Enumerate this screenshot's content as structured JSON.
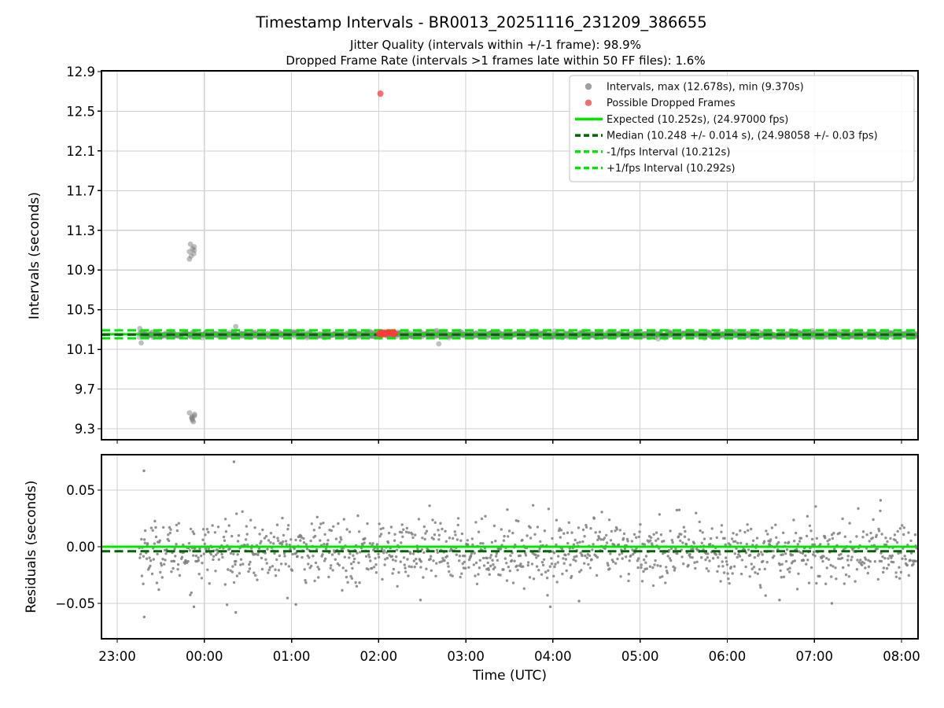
{
  "title": "Timestamp Intervals - BR0013_20251116_231209_386655",
  "subtitle_jitter": "Jitter Quality (intervals within +/-1 frame): 98.9%",
  "subtitle_dropped": "Dropped Frame Rate (intervals >1 frames late within 50 FF files): 1.6%",
  "colors": {
    "scatter_gray": "#808080",
    "residual_gray": "#7f7f7f",
    "dropped_red": "#ff3b3b",
    "bright_green": "#00e500",
    "dark_green": "#006400",
    "grid": "#d0d0d0",
    "spine": "#000000",
    "legend_border": "#cccccc"
  },
  "chart_data": [
    {
      "type": "scatter",
      "panel": "intervals",
      "ylabel": "Intervals (seconds)",
      "ytick_labels": [
        "12.9",
        "12.5",
        "12.1",
        "11.7",
        "11.3",
        "10.9",
        "10.5",
        "10.1",
        "9.7",
        "9.3"
      ],
      "ytick_values": [
        12.9,
        12.5,
        12.1,
        11.7,
        11.3,
        10.9,
        10.5,
        10.1,
        9.7,
        9.3
      ],
      "ylim": [
        9.19,
        12.93
      ],
      "xlim_hours": [
        -0.18,
        9.19
      ],
      "grid": true,
      "legend_position": "upper right",
      "legend": [
        {
          "label": "Intervals, max (12.678s), min (9.370s)",
          "marker": "dot",
          "color": "#a0a0a0"
        },
        {
          "label": "Possible Dropped Frames",
          "marker": "dot",
          "color": "#f26d6d"
        },
        {
          "label": "Expected (10.252s), (24.97000 fps)",
          "marker": "line-solid",
          "color": "#00e500"
        },
        {
          "label": "Median (10.248 +/- 0.014 s), (24.98058 +/- 0.03 fps)",
          "marker": "line-dashed",
          "color": "#006400"
        },
        {
          "label": "-1/fps Interval (10.212s)",
          "marker": "line-dashed",
          "color": "#00e500"
        },
        {
          "label": "+1/fps Interval (10.292s)",
          "marker": "line-dashed",
          "color": "#00e500"
        }
      ],
      "ref_lines": [
        {
          "name": "expected",
          "value": 10.252,
          "style": "solid",
          "color": "#00e500"
        },
        {
          "name": "plus_1fps",
          "value": 10.292,
          "style": "dashed",
          "color": "#00e500"
        },
        {
          "name": "minus_1fps",
          "value": 10.212,
          "style": "dashed",
          "color": "#00e500"
        },
        {
          "name": "median",
          "value": 10.248,
          "style": "dashed",
          "color": "#006400"
        }
      ],
      "stats": {
        "max_s": 12.678,
        "min_s": 9.37,
        "expected_s": 10.252,
        "expected_fps": 24.97,
        "median_s": 10.248,
        "median_err_s": 0.014,
        "median_fps": 24.98058,
        "median_fps_err": 0.03,
        "minus_1fps_s": 10.212,
        "plus_1fps_s": 10.292
      },
      "series": {
        "main_band": {
          "t_start_h": 0.253,
          "t_end_h": 9.18,
          "n_points": 1300,
          "median_s": 10.248,
          "sigma_s": 0.013
        },
        "high_cluster": {
          "t_h": 0.857,
          "values_s": [
            11.16,
            11.135,
            11.115,
            11.1,
            11.085,
            11.065,
            11.04,
            11.01
          ]
        },
        "low_cluster": {
          "t_h": 0.857,
          "values_s": [
            9.46,
            9.445,
            9.43,
            9.42,
            9.41,
            9.4,
            9.385,
            9.37
          ]
        },
        "stray_points": [
          {
            "t_h": 0.26,
            "v_s": 10.31
          },
          {
            "t_h": 0.275,
            "v_s": 10.165
          },
          {
            "t_h": 1.36,
            "v_s": 10.33
          },
          {
            "t_h": 3.69,
            "v_s": 10.155
          }
        ],
        "dropped_frames_cluster": {
          "t_start_h": 3.005,
          "t_end_h": 3.19,
          "n_points": 22,
          "center_s": 10.262,
          "sigma_s": 0.006
        },
        "dropped_frame_outlier": {
          "t_h": 3.02,
          "v_s": 12.678
        }
      }
    },
    {
      "type": "scatter",
      "panel": "residuals",
      "ylabel": "Residuals (seconds)",
      "xlabel": "Time (UTC)",
      "xticks": [
        "23:00",
        "00:00",
        "01:00",
        "02:00",
        "03:00",
        "04:00",
        "05:00",
        "06:00",
        "07:00",
        "08:00"
      ],
      "ytick_labels": [
        "0.05",
        "0.00",
        "−0.05"
      ],
      "ytick_values": [
        0.05,
        0.0,
        -0.05
      ],
      "ylim": [
        -0.081,
        0.081
      ],
      "grid": true,
      "ref_lines": [
        {
          "name": "zero",
          "value": 0.0,
          "style": "solid",
          "color": "#00e500"
        },
        {
          "name": "median_residual",
          "value": -0.004,
          "style": "dashed",
          "color": "#006400"
        }
      ],
      "series": {
        "residual_band": {
          "t_start_h": 0.253,
          "t_end_h": 9.18,
          "n_points": 1300,
          "center_s": -0.004,
          "sigma_s": 0.0135
        },
        "outliers": [
          {
            "t_h": 0.307,
            "v_s": 0.067
          },
          {
            "t_h": 0.31,
            "v_s": -0.062
          },
          {
            "t_h": 0.88,
            "v_s": -0.053
          },
          {
            "t_h": 1.34,
            "v_s": 0.075
          },
          {
            "t_h": 1.36,
            "v_s": -0.058
          },
          {
            "t_h": 2.05,
            "v_s": -0.051
          },
          {
            "t_h": 3.48,
            "v_s": -0.047
          },
          {
            "t_h": 4.97,
            "v_s": -0.053
          },
          {
            "t_h": 5.3,
            "v_s": -0.048
          },
          {
            "t_h": 7.6,
            "v_s": -0.047
          },
          {
            "t_h": 8.2,
            "v_s": -0.05
          },
          {
            "t_h": 8.76,
            "v_s": 0.041
          }
        ]
      }
    }
  ]
}
